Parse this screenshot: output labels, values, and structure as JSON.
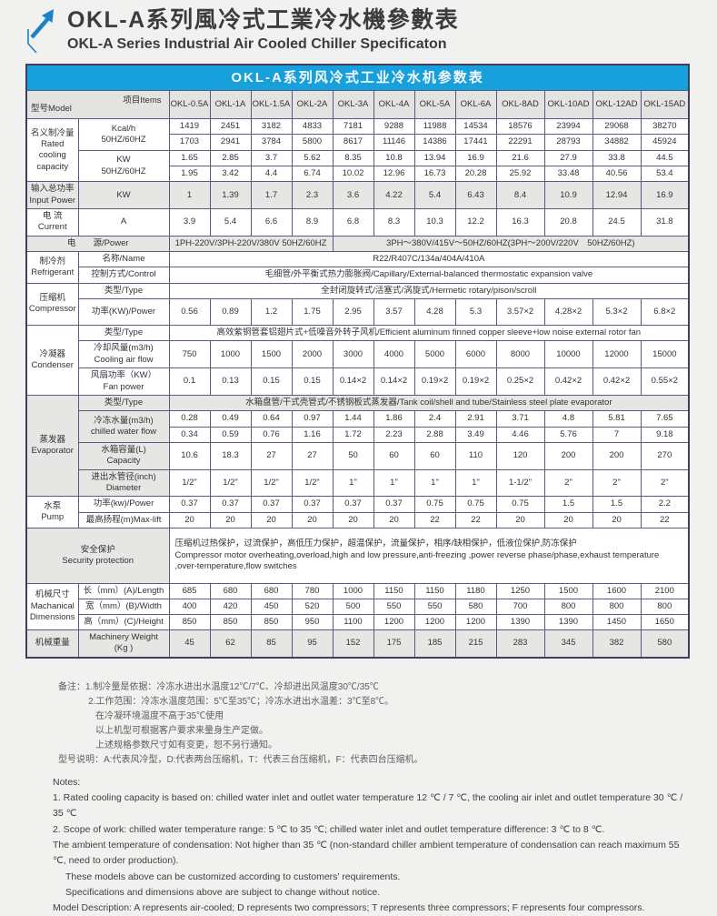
{
  "page": {
    "title_cn": "OKL-A系列風冷式工業冷水機參數表",
    "title_en": "OKL-A Series Industrial Air Cooled Chiller Specificaton"
  },
  "table": {
    "title": "OKL-A系列风冷式工业冷水机参数表",
    "corner": {
      "model": "型号Model",
      "items": "项目Items"
    },
    "models": [
      "OKL-0.5A",
      "OKL-1A",
      "OKL-1.5A",
      "OKL-2A",
      "OKL-3A",
      "OKL-4A",
      "OKL-5A",
      "OKL-6A",
      "OKL-8AD",
      "OKL-10AD",
      "OKL-12AD",
      "OKL-15AD"
    ],
    "rows": [
      {
        "name": "table-title-row",
        "cls": "titlebar",
        "cells": [
          {
            "t": "OKL-A系列风冷式工业冷水机参数表",
            "cs": 14,
            "name": "table-title"
          }
        ]
      },
      {
        "name": "model-header-row",
        "cls": "header",
        "cells": [
          {
            "type": "corner",
            "cs": 2,
            "name": "corner-cell"
          },
          {
            "type": "models"
          }
        ]
      },
      {
        "name": "rated-capacity-kcal-50hz-row",
        "cells": [
          {
            "t": "名义制冷量\nRated\ncooling\ncapacity",
            "rs": 4,
            "name": "category-rated-capacity"
          },
          {
            "t": "Kcal/h\n50HZ/60HZ",
            "rs": 2,
            "name": "item-kcal"
          },
          "1419",
          "2451",
          "3182",
          "4833",
          "7181",
          "9288",
          "11988",
          "14534",
          "18576",
          "23994",
          "29068",
          "38270"
        ]
      },
      {
        "name": "rated-capacity-kcal-60hz-row",
        "cells": [
          "1703",
          "2941",
          "3784",
          "5800",
          "8617",
          "11146",
          "14386",
          "17441",
          "22291",
          "28793",
          "34882",
          "45924"
        ]
      },
      {
        "name": "rated-capacity-kw-50hz-row",
        "cells": [
          {
            "t": "KW\n50HZ/60HZ",
            "rs": 2,
            "name": "item-kw"
          },
          "1.65",
          "2.85",
          "3.7",
          "5.62",
          "8.35",
          "10.8",
          "13.94",
          "16.9",
          "21.6",
          "27.9",
          "33.8",
          "44.5"
        ]
      },
      {
        "name": "rated-capacity-kw-60hz-row",
        "cells": [
          "1.95",
          "3.42",
          "4.4",
          "6.74",
          "10.02",
          "12.96",
          "16.73",
          "20.28",
          "25.92",
          "33.48",
          "40.56",
          "53.4"
        ]
      },
      {
        "name": "input-power-row",
        "cls": "gray h26",
        "cells": [
          {
            "t": "输入总功率\nInput Power",
            "name": "category-input-power"
          },
          {
            "t": "KW",
            "name": "item-input-kw"
          },
          "1",
          "1.39",
          "1.7",
          "2.3",
          "3.6",
          "4.22",
          "5.4",
          "6.43",
          "8.4",
          "10.9",
          "12.94",
          "16.9"
        ]
      },
      {
        "name": "current-row",
        "cls": "h26",
        "cells": [
          {
            "t": "电 流\nCurrent",
            "name": "category-current"
          },
          {
            "t": "A",
            "name": "item-current-a"
          },
          "3.9",
          "5.4",
          "6.6",
          "8.9",
          "6.8",
          "8.3",
          "10.3",
          "12.2",
          "16.3",
          "20.8",
          "24.5",
          "31.8"
        ]
      },
      {
        "name": "power-supply-row",
        "cls": "gray",
        "cells": [
          {
            "t": "电　　源/Power",
            "cs": 2,
            "name": "category-power-supply"
          },
          {
            "t": "1PH-220V/3PH-220V/380V 50HZ/60HZ",
            "cs": 4,
            "name": "power-supply-small-models"
          },
          {
            "t": "3PH～380V/415V～50HZ/60HZ(3PH～200V/220V　50HZ/60HZ)",
            "cs": 8,
            "name": "power-supply-large-models"
          }
        ]
      },
      {
        "name": "refrigerant-name-row",
        "cells": [
          {
            "t": "制冷剂\nRefrigerant",
            "rs": 2,
            "name": "category-refrigerant"
          },
          {
            "t": "名称/Name",
            "name": "item-refrigerant-name"
          },
          {
            "t": "R22/R407C/134a/404A/410A",
            "cs": 12,
            "name": "refrigerant-name-value"
          }
        ]
      },
      {
        "name": "refrigerant-control-row",
        "cells": [
          {
            "t": "控制方式/Control",
            "name": "item-refrigerant-control"
          },
          {
            "t": "毛细管/外平衡式热力膨胀阀/Capillary/External-balanced thermostatic expansion valve",
            "cs": 12,
            "name": "refrigerant-control-value"
          }
        ]
      },
      {
        "name": "compressor-type-row",
        "cells": [
          {
            "t": "压缩机\nCompressor",
            "rs": 2,
            "name": "category-compressor"
          },
          {
            "t": "类型/Type",
            "name": "item-compressor-type"
          },
          {
            "t": "全封闭旋转式/活塞式/涡旋式/Hermetic rotary/pison/scroll",
            "cs": 12,
            "name": "compressor-type-value"
          }
        ]
      },
      {
        "name": "compressor-power-row",
        "cls": "h26",
        "cells": [
          {
            "t": "功率(KW)/Power",
            "name": "item-compressor-power"
          },
          "0.56",
          "0.89",
          "1.2",
          "1.75",
          "2.95",
          "3.57",
          "4.28",
          "5.3",
          "3.57×2",
          "4.28×2",
          "5.3×2",
          "6.8×2"
        ]
      },
      {
        "name": "condenser-type-row",
        "cells": [
          {
            "t": "冷凝器\nCondenser",
            "rs": 3,
            "name": "category-condenser"
          },
          {
            "t": "类型/Type",
            "name": "item-condenser-type"
          },
          {
            "t": "高效紫铜管套铝翅片式+低噪音外转子风机/Efficient aluminum finned copper sleeve+low noise external rotor fan",
            "cs": 12,
            "name": "condenser-type-value"
          }
        ]
      },
      {
        "name": "condenser-airflow-row",
        "cells": [
          {
            "t": "冷却风量(m3/h)\nCooling air flow",
            "name": "item-cooling-air-flow"
          },
          "750",
          "1000",
          "1500",
          "2000",
          "3000",
          "4000",
          "5000",
          "6000",
          "8000",
          "10000",
          "12000",
          "15000"
        ]
      },
      {
        "name": "condenser-fan-power-row",
        "cells": [
          {
            "t": "风扇功率（KW）\nFan power",
            "name": "item-fan-power"
          },
          "0.1",
          "0.13",
          "0.15",
          "0.15",
          "0.14×2",
          "0.14×2",
          "0.19×2",
          "0.19×2",
          "0.25×2",
          "0.42×2",
          "0.42×2",
          "0.55×2"
        ]
      },
      {
        "name": "evaporator-type-row",
        "cls": "gray",
        "cells": [
          {
            "t": "蒸发器\nEvaporator",
            "rs": 5,
            "cls": "g",
            "name": "category-evaporator"
          },
          {
            "t": "类型/Type",
            "cls": "g",
            "name": "item-evaporator-type"
          },
          {
            "t": "水箱盘管/干式壳管式/不锈钢板式蒸发器/Tank coil/shell and tube/Stainless steel plate evaporator",
            "cs": 12,
            "name": "evaporator-type-value"
          }
        ]
      },
      {
        "name": "chilled-water-flow-50hz-row",
        "cells": [
          {
            "t": "冷冻水量(m3/h)\nchilled water flow",
            "rs": 2,
            "cls": "g",
            "name": "item-chilled-water-flow"
          },
          "0.28",
          "0.49",
          "0.64",
          "0.97",
          "1.44",
          "1.86",
          "2.4",
          "2.91",
          "3.71",
          "4.8",
          "5.81",
          "7.65"
        ]
      },
      {
        "name": "chilled-water-flow-60hz-row",
        "cells": [
          "0.34",
          "0.59",
          "0.76",
          "1.16",
          "1.72",
          "2.23",
          "2.88",
          "3.49",
          "4.46",
          "5.76",
          "7",
          "9.18"
        ]
      },
      {
        "name": "tank-capacity-row",
        "cells": [
          {
            "t": "水箱容量(L)\nCapacity",
            "cls": "g",
            "name": "item-tank-capacity"
          },
          "10.6",
          "18.3",
          "27",
          "27",
          "50",
          "60",
          "60",
          "110",
          "120",
          "200",
          "200",
          "270"
        ]
      },
      {
        "name": "pipe-diameter-row",
        "cells": [
          {
            "t": "进出水管径(inch)\nDiameter",
            "cls": "g",
            "name": "item-pipe-diameter"
          },
          "1/2\"",
          "1/2\"",
          "1/2\"",
          "1/2\"",
          "1\"",
          "1\"",
          "1\"",
          "1\"",
          "1-1/2\"",
          "2\"",
          "2\"",
          "2\""
        ]
      },
      {
        "name": "pump-power-row",
        "cells": [
          {
            "t": "水泵\nPump",
            "rs": 2,
            "name": "category-pump"
          },
          {
            "t": "功率(kw)/Power",
            "name": "item-pump-power"
          },
          "0.37",
          "0.37",
          "0.37",
          "0.37",
          "0.37",
          "0.37",
          "0.75",
          "0.75",
          "0.75",
          "1.5",
          "1.5",
          "2.2"
        ]
      },
      {
        "name": "pump-maxlift-row",
        "cells": [
          {
            "t": "最高扬程(m)Max-lift",
            "name": "item-pump-maxlift"
          },
          "20",
          "20",
          "20",
          "20",
          "20",
          "20",
          "22",
          "22",
          "20",
          "20",
          "20",
          "22"
        ]
      },
      {
        "name": "security-protection-row",
        "cls": "sec",
        "cells": [
          {
            "t": "安全保护\nSecurity protection",
            "cs": 2,
            "cls": "g",
            "name": "category-security-protection"
          },
          {
            "t": "压缩机过热保护，过流保护，高低压力保护，超温保护，流量保护，相序/缺相保护，低液位保护,防冻保护\nCompressor motor overheating,overload,high and low pressure,anti-freezing ,power reverse phase/phase,exhaust temperature ,over-temperature,flow switches",
            "cs": 12,
            "cls": "left",
            "name": "security-protection-value"
          }
        ]
      },
      {
        "name": "dimension-length-row",
        "cls": "slim",
        "cells": [
          {
            "t": "机械尺寸\nMachanical\nDimensions",
            "rs": 3,
            "name": "category-dimensions"
          },
          {
            "t": "长（mm）(A)/Length",
            "name": "item-length"
          },
          "685",
          "680",
          "680",
          "780",
          "1000",
          "1150",
          "1150",
          "1180",
          "1250",
          "1500",
          "1600",
          "2100"
        ]
      },
      {
        "name": "dimension-width-row",
        "cls": "slim",
        "cells": [
          {
            "t": "宽（mm）(B)/Width",
            "name": "item-width"
          },
          "400",
          "420",
          "450",
          "520",
          "500",
          "550",
          "550",
          "580",
          "700",
          "800",
          "800",
          "800"
        ]
      },
      {
        "name": "dimension-height-row",
        "cls": "slim",
        "cells": [
          {
            "t": "高（mm）(C)/Height",
            "name": "item-height"
          },
          "850",
          "850",
          "850",
          "950",
          "1100",
          "1200",
          "1200",
          "1200",
          "1390",
          "1390",
          "1450",
          "1650"
        ]
      },
      {
        "name": "machinery-weight-row",
        "cls": "gray h26",
        "cells": [
          {
            "t": "机械重量",
            "name": "category-weight"
          },
          {
            "t": "Machinery Weight\n(Kg )",
            "name": "item-weight"
          },
          "45",
          "62",
          "85",
          "95",
          "152",
          "175",
          "185",
          "215",
          "283",
          "345",
          "382",
          "580"
        ]
      }
    ]
  },
  "notes_cn": [
    {
      "t": "备注：1.制冷量是依据：冷冻水进出水温度12℃/7℃、冷却进出风温度30℃/35℃"
    },
    {
      "t": "2.工作范围：冷冻水温度范围：5℃至35℃；冷冻水进出水温差：3℃至8℃。",
      "ind": 1
    },
    {
      "t": "在冷凝环境温度不高于35℃使用",
      "ind": 2
    },
    {
      "t": "以上机型可根据客户要求来量身生产定做。",
      "ind": 2
    },
    {
      "t": "上述规格参数尺寸如有变更，恕不另行通知。",
      "ind": 2
    },
    {
      "t": "型号说明：A:代表风冷型，D:代表两台压缩机，T：代表三台压缩机，F：代表四台压缩机。"
    }
  ],
  "notes_en": [
    {
      "t": "Notes:"
    },
    {
      "t": "1. Rated cooling capacity is based on: chilled water inlet and outlet water temperature 12 ℃ / 7 ℃, the cooling air inlet and outlet temperature 30 ℃ / 35 ℃"
    },
    {
      "t": "2. Scope of work: chilled water temperature range: 5 ℃ to 35 ℃; chilled water inlet and outlet temperature difference: 3 ℃ to 8 ℃."
    },
    {
      "t": "The ambient temperature of condensation: Not higher than 35 ℃ (non-standard chiller ambient temperature of condensation can reach maximum 55 ℃, need to order production)."
    },
    {
      "t": "These models above can be customized according to customers’  requirements.",
      "ind": 1
    },
    {
      "t": "Specifications and dimensions above are subject to change without notice.",
      "ind": 1
    },
    {
      "t": "Model Description: A represents air-cooled; D represents two compressors; T represents three compressors; F represents four compressors."
    }
  ],
  "colors": {
    "table_title_bg": "#18a0dc",
    "header_gray": "#e3e3e2",
    "shaded_cell": "#e6e6e4",
    "border": "#5a5a7e",
    "logo_blue": "#1b82c8"
  }
}
